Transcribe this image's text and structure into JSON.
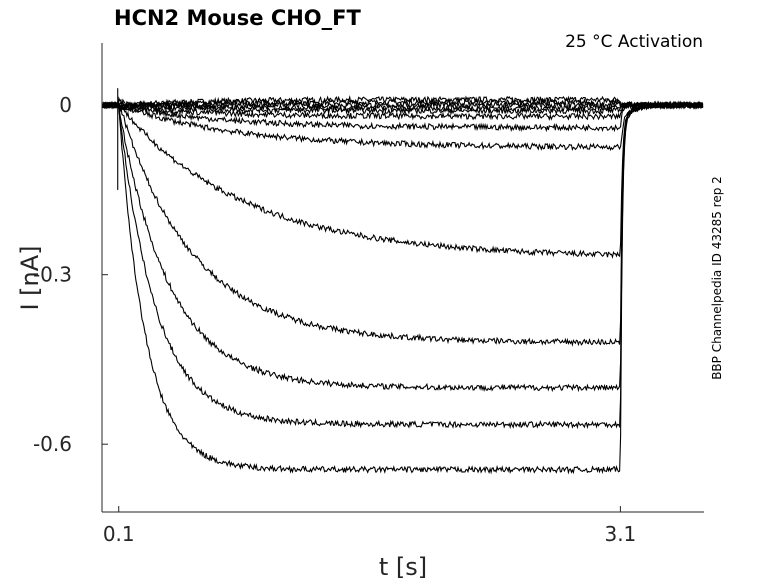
{
  "chart_data": {
    "type": "line",
    "title": "HCN2  Mouse  CHO_FT",
    "annotation": "25 °C  Activation",
    "side_label": "BBP Channelpedia ID 43285 rep 2",
    "xlabel": "t [s]",
    "ylabel": "I [nA]",
    "xlim": [
      0.0,
      3.6
    ],
    "ylim": [
      -0.72,
      0.11
    ],
    "x_ticks": [
      {
        "value": 0.1,
        "label": "0.1"
      },
      {
        "value": 3.1,
        "label": "3.1"
      }
    ],
    "y_ticks": [
      {
        "value": 0,
        "label": "0"
      },
      {
        "value": -0.3,
        "label": "-0.3"
      },
      {
        "value": -0.6,
        "label": "-0.6"
      }
    ],
    "grid": false,
    "stimulus": {
      "step_on": 0.1,
      "step_off": 3.1
    },
    "series": [
      {
        "steady_state": 0.01,
        "tau": 0.5
      },
      {
        "steady_state": 0.005,
        "tau": 0.5
      },
      {
        "steady_state": 0.0,
        "tau": 0.5
      },
      {
        "steady_state": -0.005,
        "tau": 0.5
      },
      {
        "steady_state": -0.01,
        "tau": 0.5
      },
      {
        "steady_state": -0.02,
        "tau": 0.5
      },
      {
        "steady_state": -0.04,
        "tau": 0.6
      },
      {
        "steady_state": -0.075,
        "tau": 0.7
      },
      {
        "steady_state": -0.27,
        "tau": 0.75
      },
      {
        "steady_state": -0.42,
        "tau": 0.45
      },
      {
        "steady_state": -0.5,
        "tau": 0.3
      },
      {
        "steady_state": -0.565,
        "tau": 0.22
      },
      {
        "steady_state": -0.645,
        "tau": 0.16
      }
    ]
  }
}
